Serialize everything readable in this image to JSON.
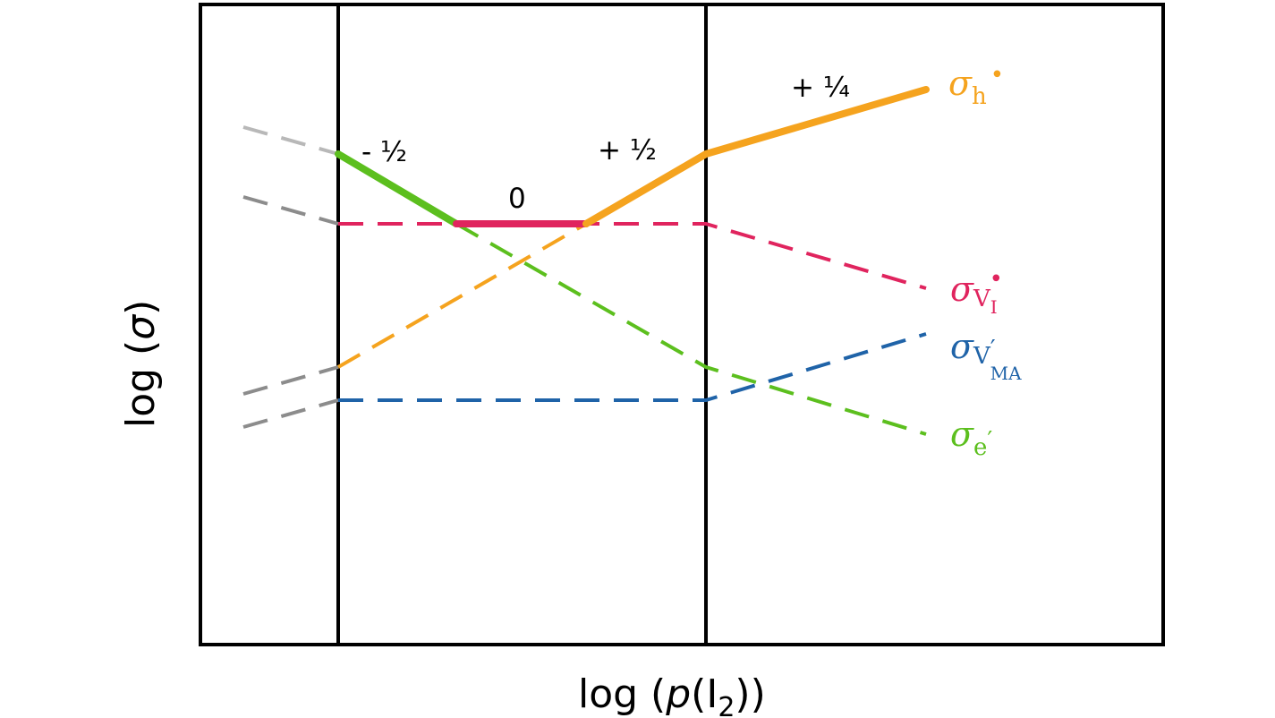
{
  "axes": {
    "x_label": {
      "prefix": "log (",
      "var": "p",
      "open": "(I",
      "sub": "2",
      "close": "))"
    },
    "y_label": {
      "prefix": "log (",
      "var": "σ",
      "close": ")"
    }
  },
  "slopes": [
    {
      "id": "neg-half",
      "text": "- ½"
    },
    {
      "id": "zero",
      "text": "0"
    },
    {
      "id": "pos-half",
      "text": "+ ½"
    },
    {
      "id": "pos-quarter",
      "text": "+ ¼"
    }
  ],
  "species": [
    {
      "id": "holes",
      "symbol": "σ",
      "subscript": "h",
      "superscript": "•",
      "color": "#f5a31e"
    },
    {
      "id": "iodine-vacancy",
      "symbol": "σ",
      "subscript": "V",
      "subsubscript": "I",
      "superscript": "•",
      "color": "#e0245e"
    },
    {
      "id": "ma-vacancy",
      "symbol": "σ",
      "subscript": "V",
      "subsubscript": "MA",
      "superscript": "′",
      "color": "#1f63a8"
    },
    {
      "id": "electrons",
      "symbol": "σ",
      "subscript": "e",
      "superscript": "′",
      "color": "#5cbf1e"
    }
  ],
  "colors": {
    "holes": "#f5a31e",
    "iodine_vacancy": "#e0245e",
    "ma_vacancy": "#1f63a8",
    "electrons": "#5cbf1e",
    "extrapolation": "#9a9a9a",
    "frame": "#000000"
  }
}
